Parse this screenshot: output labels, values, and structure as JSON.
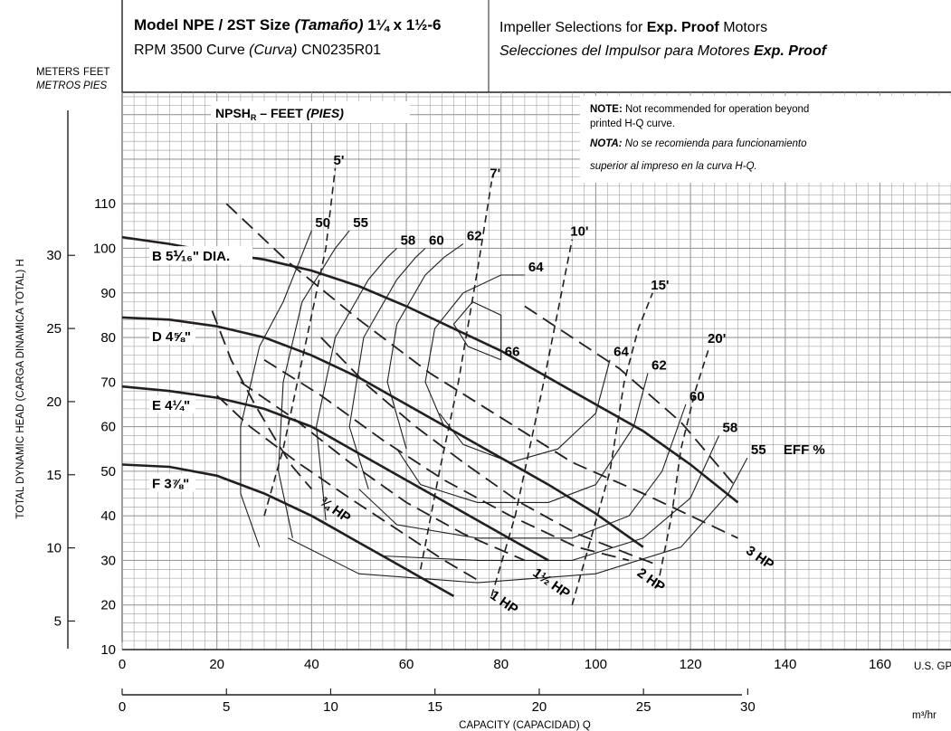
{
  "header": {
    "model_prefix": "Model NPE / 2ST Size ",
    "model_tamano": "(Tamaño)",
    "model_size": " 1¼ x 1½-6",
    "rpm_prefix": "RPM 3500 Curve ",
    "rpm_curva": "(Curva)",
    "rpm_code": " CN0235R01",
    "impeller_en_prefix": "Impeller Selections for ",
    "impeller_en_bold": "Exp. Proof",
    "impeller_en_suffix": " Motors",
    "impeller_es_prefix": "Selecciones del Impulsor para Motores ",
    "impeller_es_bold": "Exp. Proof"
  },
  "note": {
    "note_label": "NOTE:",
    "note_line1": " Not recommended for operation beyond",
    "note_line2": "printed H-Q curve.",
    "nota_label": "NOTA:",
    "nota_line1": " No se recomienda para funcionamiento",
    "nota_line2": "superior al impreso en la curva H-Q."
  },
  "axes": {
    "meters_label": "METERS",
    "metros_label": "METROS",
    "feet_label": "FEET",
    "pies_label": "PIES",
    "y_title": "TOTAL DYNAMIC HEAD (CARGA DINAMICA TOTAL) H",
    "x_title": "CAPACITY (CAPACIDAD) Q",
    "gpm_unit": "U.S. GPM",
    "m3hr_unit": "m³/hr",
    "gpm_ticks": [
      "0",
      "20",
      "40",
      "60",
      "80",
      "100",
      "120",
      "140",
      "160"
    ],
    "feet_ticks": [
      "10",
      "20",
      "30",
      "40",
      "50",
      "60",
      "70",
      "80",
      "90",
      "100",
      "110"
    ],
    "meter_ticks": [
      "5",
      "10",
      "15",
      "20",
      "25",
      "30"
    ],
    "m3hr_ticks": [
      "0",
      "5",
      "10",
      "15",
      "20",
      "25",
      "30"
    ]
  },
  "chart_data": {
    "type": "line",
    "title": "Model NPE / 2ST Size (Tamaño) 1¼ x 1½-6",
    "xlabel": "CAPACITY (CAPACIDAD) Q",
    "ylabel": "TOTAL DYNAMIC HEAD (CARGA DINAMICA TOTAL) H",
    "x_unit": "U.S. GPM",
    "y_unit": "FEET",
    "xlim": [
      0,
      175
    ],
    "ylim": [
      10,
      135
    ],
    "grid": true,
    "npsh_title": "NPSHR – FEET (PIES)",
    "impeller_curves": [
      {
        "label": "B 5⅟₁₆\" DIA.",
        "points": [
          [
            0,
            102.5
          ],
          [
            10,
            101
          ],
          [
            20,
            99
          ],
          [
            30,
            97.5
          ],
          [
            40,
            95
          ],
          [
            50,
            91.5
          ],
          [
            60,
            87
          ],
          [
            70,
            82
          ],
          [
            80,
            77
          ],
          [
            90,
            71
          ],
          [
            100,
            65
          ],
          [
            110,
            59
          ],
          [
            120,
            51.5
          ],
          [
            130,
            43
          ]
        ]
      },
      {
        "label": "D 4⅝\"",
        "points": [
          [
            0,
            84.5
          ],
          [
            10,
            84
          ],
          [
            20,
            82.5
          ],
          [
            30,
            80
          ],
          [
            40,
            76
          ],
          [
            50,
            71
          ],
          [
            60,
            65
          ],
          [
            70,
            59
          ],
          [
            80,
            53
          ],
          [
            90,
            47
          ],
          [
            100,
            40.5
          ],
          [
            110,
            33
          ]
        ]
      },
      {
        "label": "E 4¼\"",
        "points": [
          [
            0,
            69
          ],
          [
            10,
            68
          ],
          [
            20,
            66.5
          ],
          [
            30,
            64
          ],
          [
            40,
            60
          ],
          [
            50,
            54
          ],
          [
            60,
            48
          ],
          [
            70,
            42
          ],
          [
            80,
            36
          ],
          [
            90,
            30
          ]
        ]
      },
      {
        "label": "F 3⅞\"",
        "points": [
          [
            0,
            51.5
          ],
          [
            10,
            51
          ],
          [
            20,
            49
          ],
          [
            30,
            45
          ],
          [
            40,
            40
          ],
          [
            50,
            34
          ],
          [
            60,
            28
          ],
          [
            70,
            22
          ]
        ]
      }
    ],
    "efficiency_contours": [
      {
        "label": "50",
        "points": [
          [
            29,
            33
          ],
          [
            25,
            45
          ],
          [
            25,
            60
          ],
          [
            29,
            78
          ],
          [
            34,
            88
          ],
          [
            40,
            104
          ]
        ]
      },
      {
        "label": "55",
        "points": [
          [
            36,
            35
          ],
          [
            33,
            50
          ],
          [
            34,
            70
          ],
          [
            38,
            88
          ],
          [
            45,
            100
          ],
          [
            48,
            104
          ]
        ]
      },
      {
        "label": "58",
        "points": [
          [
            43,
            39
          ],
          [
            41,
            60
          ],
          [
            45,
            80
          ],
          [
            52,
            93
          ],
          [
            56,
            98
          ],
          [
            58,
            100
          ]
        ]
      },
      {
        "label": "60",
        "points": [
          [
            52,
            46
          ],
          [
            48,
            60
          ],
          [
            51,
            80
          ],
          [
            58,
            93
          ],
          [
            62,
            98
          ],
          [
            64,
            100
          ]
        ]
      },
      {
        "label": "62",
        "points": [
          [
            60,
            55
          ],
          [
            56,
            70
          ],
          [
            58,
            83
          ],
          [
            64,
            94
          ],
          [
            68,
            98
          ],
          [
            72,
            101
          ]
        ]
      },
      {
        "label": "64",
        "points": [
          [
            68,
            60
          ],
          [
            64,
            70
          ],
          [
            66,
            82
          ],
          [
            72,
            90
          ],
          [
            80,
            94
          ],
          [
            85,
            94
          ]
        ]
      },
      {
        "label": "66",
        "points": [
          [
            80,
            75
          ],
          [
            73,
            78
          ],
          [
            70,
            83
          ],
          [
            74,
            88
          ],
          [
            80,
            85
          ],
          [
            80,
            75
          ]
        ]
      },
      {
        "label": "64",
        "points": [
          [
            67,
            63
          ],
          [
            72,
            56
          ],
          [
            82,
            52
          ],
          [
            92,
            55
          ],
          [
            100,
            63
          ],
          [
            103,
            75
          ]
        ]
      },
      {
        "label": "62",
        "points": [
          [
            58,
            55
          ],
          [
            63,
            47
          ],
          [
            75,
            43
          ],
          [
            90,
            43
          ],
          [
            100,
            47
          ],
          [
            108,
            60
          ],
          [
            111,
            72
          ]
        ]
      },
      {
        "label": "60",
        "points": [
          [
            50,
            46
          ],
          [
            58,
            38
          ],
          [
            75,
            35
          ],
          [
            95,
            35
          ],
          [
            107,
            40
          ],
          [
            114,
            50
          ],
          [
            119,
            65
          ]
        ]
      },
      {
        "label": "58",
        "points": [
          [
            42,
            39
          ],
          [
            55,
            31
          ],
          [
            75,
            30
          ],
          [
            95,
            30
          ],
          [
            110,
            35
          ],
          [
            120,
            44
          ],
          [
            126,
            58
          ]
        ]
      },
      {
        "label": "55",
        "points": [
          [
            35,
            35
          ],
          [
            50,
            27
          ],
          [
            75,
            25
          ],
          [
            100,
            27
          ],
          [
            118,
            33
          ],
          [
            128,
            45
          ],
          [
            132,
            53
          ]
        ]
      }
    ],
    "eff_label": "EFF %",
    "npsh_lines": [
      {
        "label": "5'",
        "points": [
          [
            30,
            40
          ],
          [
            34,
            55
          ],
          [
            37,
            70
          ],
          [
            40,
            85
          ],
          [
            43,
            100
          ],
          [
            45,
            118
          ]
        ]
      },
      {
        "label": "7'",
        "points": [
          [
            63,
            28
          ],
          [
            67,
            50
          ],
          [
            71,
            70
          ],
          [
            75,
            95
          ],
          [
            78,
            115
          ]
        ]
      },
      {
        "label": "10'",
        "points": [
          [
            78,
            22
          ],
          [
            83,
            40
          ],
          [
            86,
            55
          ],
          [
            89,
            70
          ],
          [
            92,
            86
          ],
          [
            95,
            102
          ]
        ]
      },
      {
        "label": "15'",
        "points": [
          [
            95,
            20
          ],
          [
            99,
            35
          ],
          [
            103,
            50
          ],
          [
            106,
            70
          ],
          [
            109,
            82
          ],
          [
            112,
            90
          ]
        ]
      },
      {
        "label": "20'",
        "points": [
          [
            113,
            24
          ],
          [
            116,
            40
          ],
          [
            118,
            55
          ],
          [
            121,
            68
          ],
          [
            124,
            78
          ]
        ]
      }
    ],
    "hp_lines": [
      {
        "label": "¾ HP",
        "points": [
          [
            19,
            86
          ],
          [
            23,
            75
          ],
          [
            28,
            65
          ],
          [
            33,
            56
          ],
          [
            36,
            51
          ],
          [
            40,
            46
          ]
        ]
      },
      {
        "label": "1 HP",
        "points": [
          [
            20,
            67
          ],
          [
            27,
            60
          ],
          [
            37,
            52
          ],
          [
            48,
            44
          ],
          [
            58,
            37
          ],
          [
            68,
            30
          ],
          [
            76,
            25
          ]
        ]
      },
      {
        "label": "1½ HP",
        "points": [
          [
            25,
            70
          ],
          [
            36,
            62
          ],
          [
            48,
            52
          ],
          [
            60,
            43
          ],
          [
            72,
            36
          ],
          [
            85,
            30
          ]
        ]
      },
      {
        "label": "2 HP",
        "points": [
          [
            30,
            75
          ],
          [
            42,
            67
          ],
          [
            55,
            57
          ],
          [
            68,
            48
          ],
          [
            82,
            40
          ],
          [
            96,
            33
          ],
          [
            107,
            30
          ]
        ]
      },
      {
        "label": "3 HP",
        "points": [
          [
            22,
            110
          ],
          [
            35,
            97
          ],
          [
            50,
            84
          ],
          [
            65,
            72
          ],
          [
            80,
            62
          ],
          [
            95,
            52
          ],
          [
            110,
            45
          ],
          [
            130,
            35
          ]
        ]
      }
    ],
    "hp_lines_dashed": [
      {
        "label": "",
        "points": [
          [
            42,
            80
          ],
          [
            52,
            69
          ],
          [
            62,
            60
          ],
          [
            72,
            52
          ],
          [
            84,
            43
          ],
          [
            96,
            36
          ],
          [
            108,
            31
          ],
          [
            113,
            29
          ]
        ]
      },
      {
        "label": "",
        "points": [
          [
            85,
            87
          ],
          [
            95,
            80
          ],
          [
            105,
            73
          ],
          [
            118,
            61
          ],
          [
            130,
            46
          ]
        ]
      }
    ]
  }
}
